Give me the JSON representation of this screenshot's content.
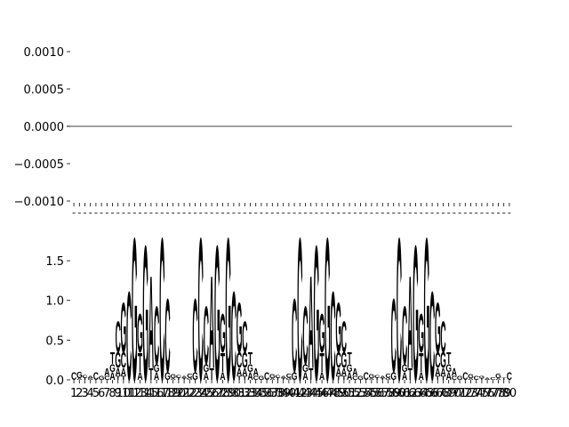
{
  "chart_data": [
    {
      "type": "line",
      "hline": 0,
      "ylim": [
        -0.001,
        0.001
      ],
      "yticks": [
        {
          "value": 0.001,
          "label": "0.0010"
        },
        {
          "value": 0.0005,
          "label": "0.0005"
        },
        {
          "value": 0,
          "label": "0.0000"
        },
        {
          "value": -0.0005,
          "label": "−0.0005"
        },
        {
          "value": -0.001,
          "label": "−0.0010"
        }
      ]
    },
    {
      "type": "logo",
      "ylim": [
        0,
        2.1
      ],
      "yticks": [
        {
          "value": 0,
          "label": "0.0"
        },
        {
          "value": 0.5,
          "label": "0.5"
        },
        {
          "value": 1,
          "label": "1.0"
        },
        {
          "value": 1.5,
          "label": "1.5"
        }
      ],
      "categories": [
        1,
        2,
        3,
        4,
        5,
        6,
        7,
        8,
        9,
        10,
        11,
        12,
        13,
        14,
        15,
        16,
        17,
        18,
        19,
        20,
        21,
        22,
        23,
        24,
        25,
        26,
        27,
        28,
        29,
        30,
        31,
        32,
        33,
        34,
        35,
        36,
        37,
        38,
        39,
        40,
        41,
        42,
        43,
        44,
        45,
        46,
        47,
        48,
        49,
        50,
        51,
        52,
        53,
        54,
        55,
        56,
        57,
        58,
        59,
        60,
        61,
        62,
        63,
        64,
        65,
        66,
        67,
        68,
        69,
        70,
        71,
        72,
        73,
        74,
        75,
        76,
        77,
        78,
        79,
        80
      ],
      "series": [
        {
          "name": "A",
          "color": "#008000",
          "values": [
            0,
            0.02,
            0,
            0.03,
            0,
            0,
            0.1,
            0.1,
            0.1,
            0.1,
            0,
            0,
            0.1,
            0,
            1.2,
            0.1,
            0,
            0,
            0.02,
            0,
            0.03,
            0,
            0,
            0,
            0.1,
            1.2,
            0,
            0.1,
            0,
            0,
            0.1,
            0.1,
            0.1,
            0.1,
            0,
            0,
            0.02,
            0,
            0.03,
            0,
            0,
            0,
            0.1,
            1.2,
            0,
            0.1,
            0,
            0,
            0.1,
            0.1,
            0.1,
            0.1,
            0,
            0,
            0.02,
            0,
            0.03,
            0,
            0,
            0,
            0.1,
            1.2,
            0,
            0.1,
            0,
            0,
            0.1,
            0.1,
            0.1,
            0.1,
            0,
            0,
            0.02,
            0,
            0,
            0.03,
            0,
            0.02,
            0,
            0
          ]
        },
        {
          "name": "C",
          "color": "#0000ff",
          "values": [
            0.1,
            0,
            0.04,
            0,
            0.1,
            0,
            0.05,
            0,
            0.4,
            0.2,
            1.15,
            0,
            0,
            0,
            0,
            0.75,
            1.85,
            0.95,
            0,
            0.04,
            0,
            0.05,
            0.95,
            1.85,
            0.75,
            0,
            0,
            0,
            0,
            1.15,
            0.2,
            0.4,
            0,
            0.05,
            0,
            0.1,
            0,
            0.04,
            0,
            0.05,
            0.95,
            1.85,
            0.75,
            0,
            0,
            0,
            0,
            1.15,
            0.2,
            0.4,
            0,
            0.05,
            0,
            0.1,
            0,
            0.04,
            0,
            0.05,
            0.95,
            1.85,
            0.75,
            0,
            0,
            0,
            0,
            1.15,
            0.2,
            0.4,
            0,
            0.05,
            0,
            0.1,
            0,
            0.05,
            0,
            0,
            0.04,
            0,
            0,
            0.1
          ]
        },
        {
          "name": "G",
          "color": "#ffa500",
          "values": [
            0,
            0.08,
            0,
            0.02,
            0,
            0.05,
            0,
            0.1,
            0.2,
            0.65,
            0,
            1.85,
            0.5,
            1.75,
            0,
            0.1,
            0,
            0.1,
            0.05,
            0,
            0,
            0.03,
            0.1,
            0,
            0.1,
            0,
            1.75,
            0.5,
            1.85,
            0,
            0.65,
            0.2,
            0.1,
            0,
            0.05,
            0,
            0.05,
            0,
            0,
            0.03,
            0.1,
            0,
            0.1,
            0,
            1.75,
            0.5,
            1.85,
            0,
            0.65,
            0.2,
            0.1,
            0,
            0.05,
            0,
            0.05,
            0,
            0,
            0.03,
            0.1,
            0,
            0.1,
            0,
            1.75,
            0.5,
            1.85,
            0,
            0.65,
            0.2,
            0.1,
            0,
            0.05,
            0,
            0.05,
            0,
            0.03,
            0,
            0,
            0.06,
            0,
            0
          ]
        },
        {
          "name": "T",
          "color": "#ff0000",
          "values": [
            0,
            0,
            0.03,
            0,
            0,
            0,
            0,
            0.15,
            0.05,
            0.05,
            0,
            0,
            0.25,
            0,
            0.15,
            0,
            0,
            0,
            0,
            0.03,
            0.02,
            0,
            0,
            0,
            0,
            0.15,
            0,
            0.25,
            0,
            0,
            0.05,
            0.05,
            0.15,
            0,
            0,
            0,
            0,
            0.03,
            0.02,
            0,
            0,
            0,
            0,
            0.15,
            0,
            0.25,
            0,
            0,
            0.05,
            0.05,
            0.15,
            0,
            0,
            0,
            0,
            0.03,
            0.02,
            0,
            0,
            0,
            0,
            0.15,
            0,
            0.25,
            0,
            0,
            0.05,
            0.05,
            0.15,
            0,
            0,
            0,
            0,
            0,
            0.02,
            0,
            0,
            0,
            0.03,
            0
          ]
        }
      ]
    }
  ]
}
